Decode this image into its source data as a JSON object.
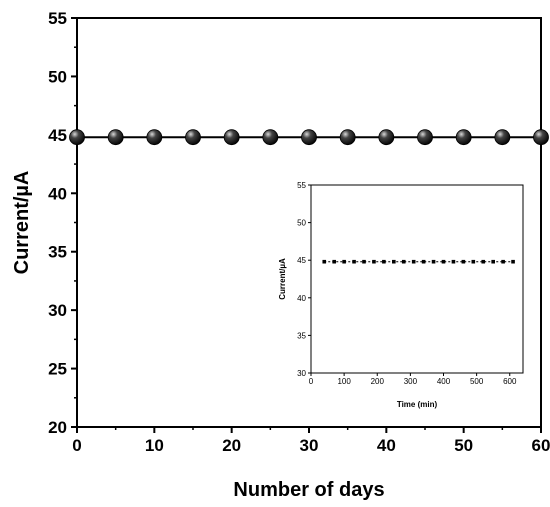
{
  "chart_data": [
    {
      "type": "line",
      "title": "",
      "xlabel": "Number of days",
      "ylabel": "Current/µA",
      "xlim": [
        0,
        60
      ],
      "ylim": [
        20,
        55
      ],
      "xticks": [
        "0",
        "10",
        "20",
        "30",
        "40",
        "50",
        "60"
      ],
      "yticks": [
        "20",
        "25",
        "30",
        "35",
        "40",
        "45",
        "50",
        "55"
      ],
      "grid": false,
      "series": [
        {
          "x": [
            0,
            5,
            10,
            15,
            20,
            25,
            30,
            35,
            40,
            45,
            50,
            55,
            60
          ],
          "y": [
            44.8,
            44.8,
            44.8,
            44.8,
            44.8,
            44.8,
            44.8,
            44.8,
            44.8,
            44.8,
            44.8,
            44.8,
            44.8
          ],
          "marker": "sphere",
          "color": "#000000"
        }
      ]
    },
    {
      "type": "line",
      "title": "",
      "xlabel": "Time (min)",
      "ylabel": "Current/µA",
      "xlim": [
        0,
        640
      ],
      "ylim": [
        30,
        55
      ],
      "xticks": [
        "0",
        "100",
        "200",
        "300",
        "400",
        "500",
        "600"
      ],
      "yticks": [
        "30",
        "35",
        "40",
        "45",
        "50",
        "55"
      ],
      "grid": false,
      "series": [
        {
          "x": [
            40,
            70,
            100,
            130,
            160,
            190,
            220,
            250,
            280,
            310,
            340,
            370,
            400,
            430,
            460,
            490,
            520,
            550,
            580,
            610
          ],
          "y": [
            44.8,
            44.8,
            44.8,
            44.8,
            44.8,
            44.8,
            44.8,
            44.8,
            44.8,
            44.8,
            44.8,
            44.8,
            44.8,
            44.8,
            44.8,
            44.8,
            44.8,
            44.8,
            44.8,
            44.8
          ],
          "marker": "square",
          "color": "#000000"
        }
      ]
    }
  ]
}
